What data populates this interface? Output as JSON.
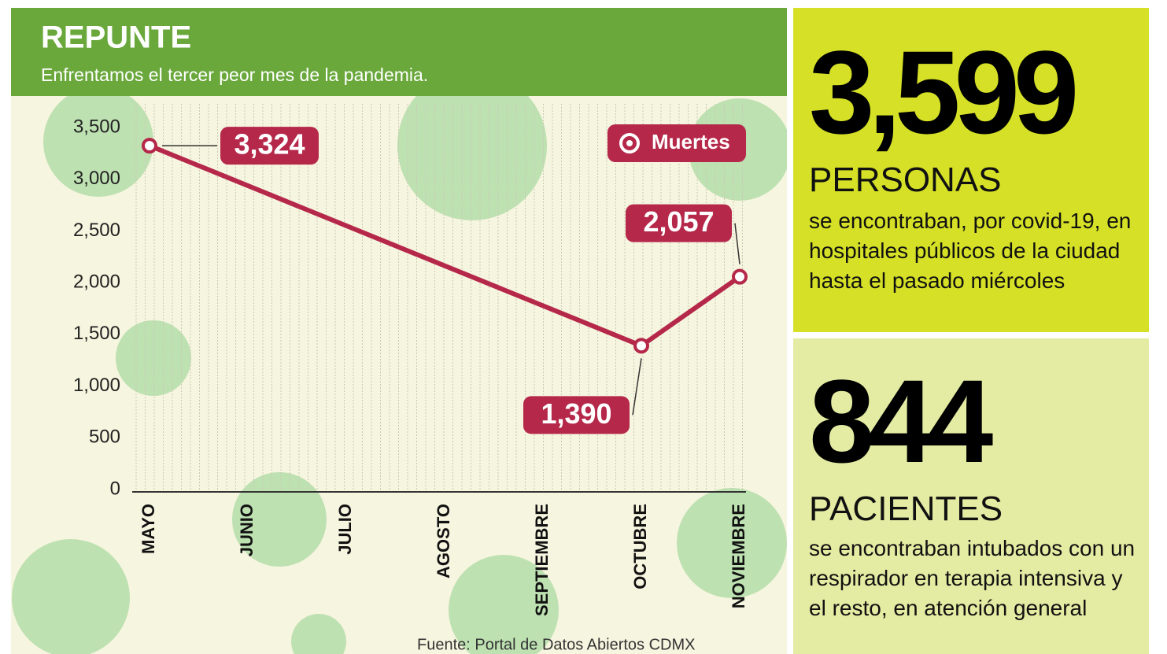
{
  "chart_data": {
    "type": "line",
    "title": "REPUNTE",
    "subtitle": "Enfrentamos el tercer peor mes de la pandemia.",
    "categories": [
      "MAYO",
      "JUNIO",
      "JULIO",
      "AGOSTO",
      "SEPTIEMBRE",
      "OCTUBRE",
      "NOVIEMBRE"
    ],
    "series": [
      {
        "name": "Muertes",
        "color": "#b5284a",
        "values": [
          3324,
          null,
          null,
          null,
          null,
          1390,
          2057
        ],
        "value_labels": [
          "3,324",
          null,
          null,
          null,
          null,
          "1,390",
          "2,057"
        ]
      }
    ],
    "ylim": [
      0,
      3500
    ],
    "yticks": [
      0,
      500,
      {
        "value": 1000,
        "label": "1,000"
      },
      {
        "value": 1500,
        "label": "1,500"
      },
      {
        "value": 2000,
        "label": "2,000"
      },
      {
        "value": 2500,
        "label": "2,500"
      },
      {
        "value": 3000,
        "label": "3,000"
      },
      {
        "value": 3500,
        "label": "3,500"
      }
    ],
    "source": "Fuente: Portal de Datos Abiertos CDMX"
  },
  "panels": [
    {
      "number": "3,599",
      "label": "PERSONAS",
      "text": "se encontraban, por covid-19, en hospitales públicos de la ciudad hasta el pasado miércoles"
    },
    {
      "number": "844",
      "label": "PACIENTES",
      "text": "se encontraban intubados con un respirador en terapia intensiva y el resto, en atención general"
    }
  ]
}
